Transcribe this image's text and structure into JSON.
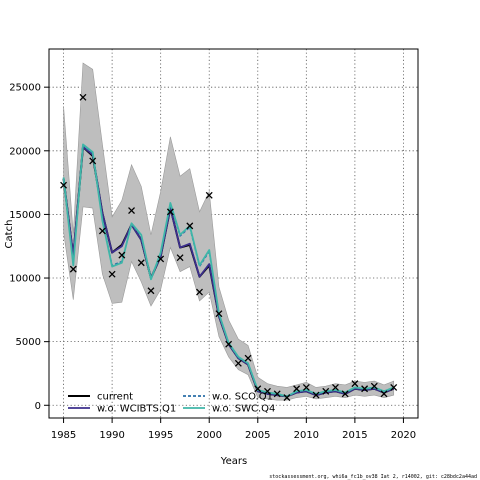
{
  "chart_data": {
    "type": "line",
    "xlabel": "Years",
    "ylabel": "Catch",
    "xlim": [
      1983.5,
      2021.5
    ],
    "ylim": [
      -1000,
      28000
    ],
    "x_ticks": [
      1985,
      1990,
      1995,
      2000,
      2005,
      2010,
      2015,
      2020
    ],
    "y_ticks": [
      0,
      5000,
      10000,
      15000,
      20000,
      25000
    ],
    "grid": true,
    "legend_position": "bottom-left",
    "years": [
      1985,
      1986,
      1987,
      1988,
      1989,
      1990,
      1991,
      1992,
      1993,
      1994,
      1995,
      1996,
      1997,
      1998,
      1999,
      2000,
      2001,
      2002,
      2003,
      2004,
      2005,
      2006,
      2007,
      2008,
      2009,
      2010,
      2011,
      2012,
      2013,
      2014,
      2015,
      2016,
      2017,
      2018,
      2019
    ],
    "observed": {
      "marker": "x",
      "values": [
        17300,
        10700,
        24200,
        19200,
        13700,
        10300,
        11800,
        15300,
        11200,
        9000,
        11500,
        15200,
        11600,
        14100,
        8900,
        16500,
        7200,
        4800,
        3300,
        3700,
        1300,
        1100,
        900,
        600,
        1300,
        1400,
        800,
        1100,
        1400,
        900,
        1700,
        1300,
        1500,
        900,
        1400
      ]
    },
    "confidence_band": {
      "upper": [
        23500,
        13500,
        26900,
        26400,
        20500,
        14800,
        16100,
        18900,
        17200,
        13400,
        16800,
        21100,
        18000,
        18600,
        15200,
        16800,
        9300,
        6700,
        5200,
        4700,
        2200,
        1700,
        1500,
        1400,
        1600,
        1800,
        1400,
        1500,
        1700,
        1600,
        1900,
        1800,
        1900,
        1600,
        1900
      ],
      "lower": [
        13600,
        8300,
        15600,
        15500,
        10300,
        8000,
        8100,
        11300,
        9700,
        7800,
        9100,
        12400,
        10500,
        10900,
        8200,
        8900,
        5400,
        3800,
        2800,
        2400,
        600,
        500,
        400,
        400,
        600,
        700,
        500,
        600,
        700,
        600,
        800,
        700,
        800,
        600,
        800
      ]
    },
    "series": [
      {
        "name": "current",
        "color": "#000000",
        "style": "solid",
        "values": [
          17800,
          11700,
          20300,
          19600,
          15100,
          12000,
          12600,
          14200,
          13000,
          10000,
          11700,
          15500,
          12400,
          12600,
          10100,
          11000,
          7000,
          4800,
          3700,
          3200,
          1100,
          900,
          800,
          700,
          1000,
          1100,
          800,
          1000,
          1100,
          900,
          1300,
          1200,
          1300,
          1000,
          1300
        ]
      },
      {
        "name": "w.o. WCIBTS.Q1",
        "color": "#3b2e8c",
        "style": "solid",
        "values": [
          17800,
          11800,
          20300,
          19700,
          15100,
          12000,
          12500,
          14200,
          13000,
          10000,
          11700,
          15500,
          12400,
          12700,
          10100,
          11100,
          7000,
          4800,
          3700,
          3200,
          1100,
          900,
          800,
          700,
          1000,
          1100,
          800,
          1000,
          1100,
          900,
          1300,
          1200,
          1300,
          1000,
          1300
        ]
      },
      {
        "name": "w.o. SCO.Q1",
        "color": "#2a6ea8",
        "style": "dashed",
        "values": [
          17900,
          11100,
          20400,
          19800,
          14600,
          11000,
          11300,
          14200,
          13300,
          9900,
          11900,
          15800,
          13300,
          14000,
          10900,
          12100,
          7200,
          4900,
          3700,
          3300,
          1200,
          1000,
          900,
          700,
          1100,
          1200,
          900,
          1100,
          1200,
          1000,
          1400,
          1300,
          1400,
          1100,
          1400
        ]
      },
      {
        "name": "w.o. SWC.Q4",
        "color": "#3fb6a8",
        "style": "solid",
        "values": [
          17900,
          11000,
          20500,
          19900,
          14500,
          10900,
          11200,
          14300,
          13400,
          9900,
          12000,
          15900,
          13400,
          14100,
          11000,
          12200,
          7200,
          4900,
          3800,
          3300,
          1200,
          1000,
          900,
          700,
          1100,
          1200,
          900,
          1100,
          1200,
          1000,
          1400,
          1300,
          1400,
          1100,
          1400
        ]
      }
    ]
  },
  "footer_text": "stockassessment.org, whi6a_fc1b_ov38 Iat 2, r14002, git: c28bdc2a44ad"
}
